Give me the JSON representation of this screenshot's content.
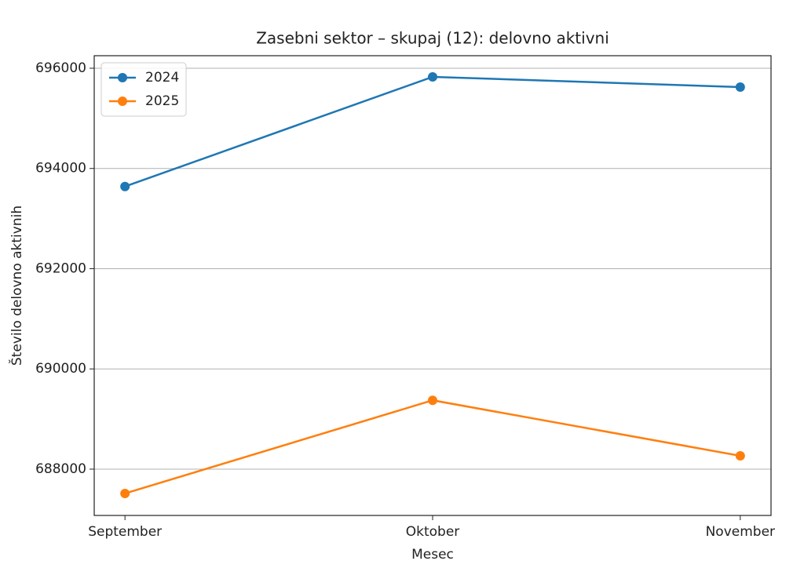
{
  "chart_data": {
    "type": "line",
    "title": "Zasebni sektor – skupaj (12): delovno aktivni",
    "xlabel": "Mesec",
    "ylabel": "Število delovno aktivnih",
    "categories": [
      "September",
      "Oktober",
      "November"
    ],
    "series": [
      {
        "name": "2024",
        "color": "#1f77b4",
        "values": [
          693640,
          695828,
          695624
        ]
      },
      {
        "name": "2025",
        "color": "#ff7f0e",
        "values": [
          687515,
          689374,
          688266
        ]
      }
    ],
    "ylim": [
      687076,
      696250
    ],
    "yticks": [
      688000,
      690000,
      692000,
      694000,
      696000
    ],
    "grid": "y",
    "legend": "upper left"
  }
}
